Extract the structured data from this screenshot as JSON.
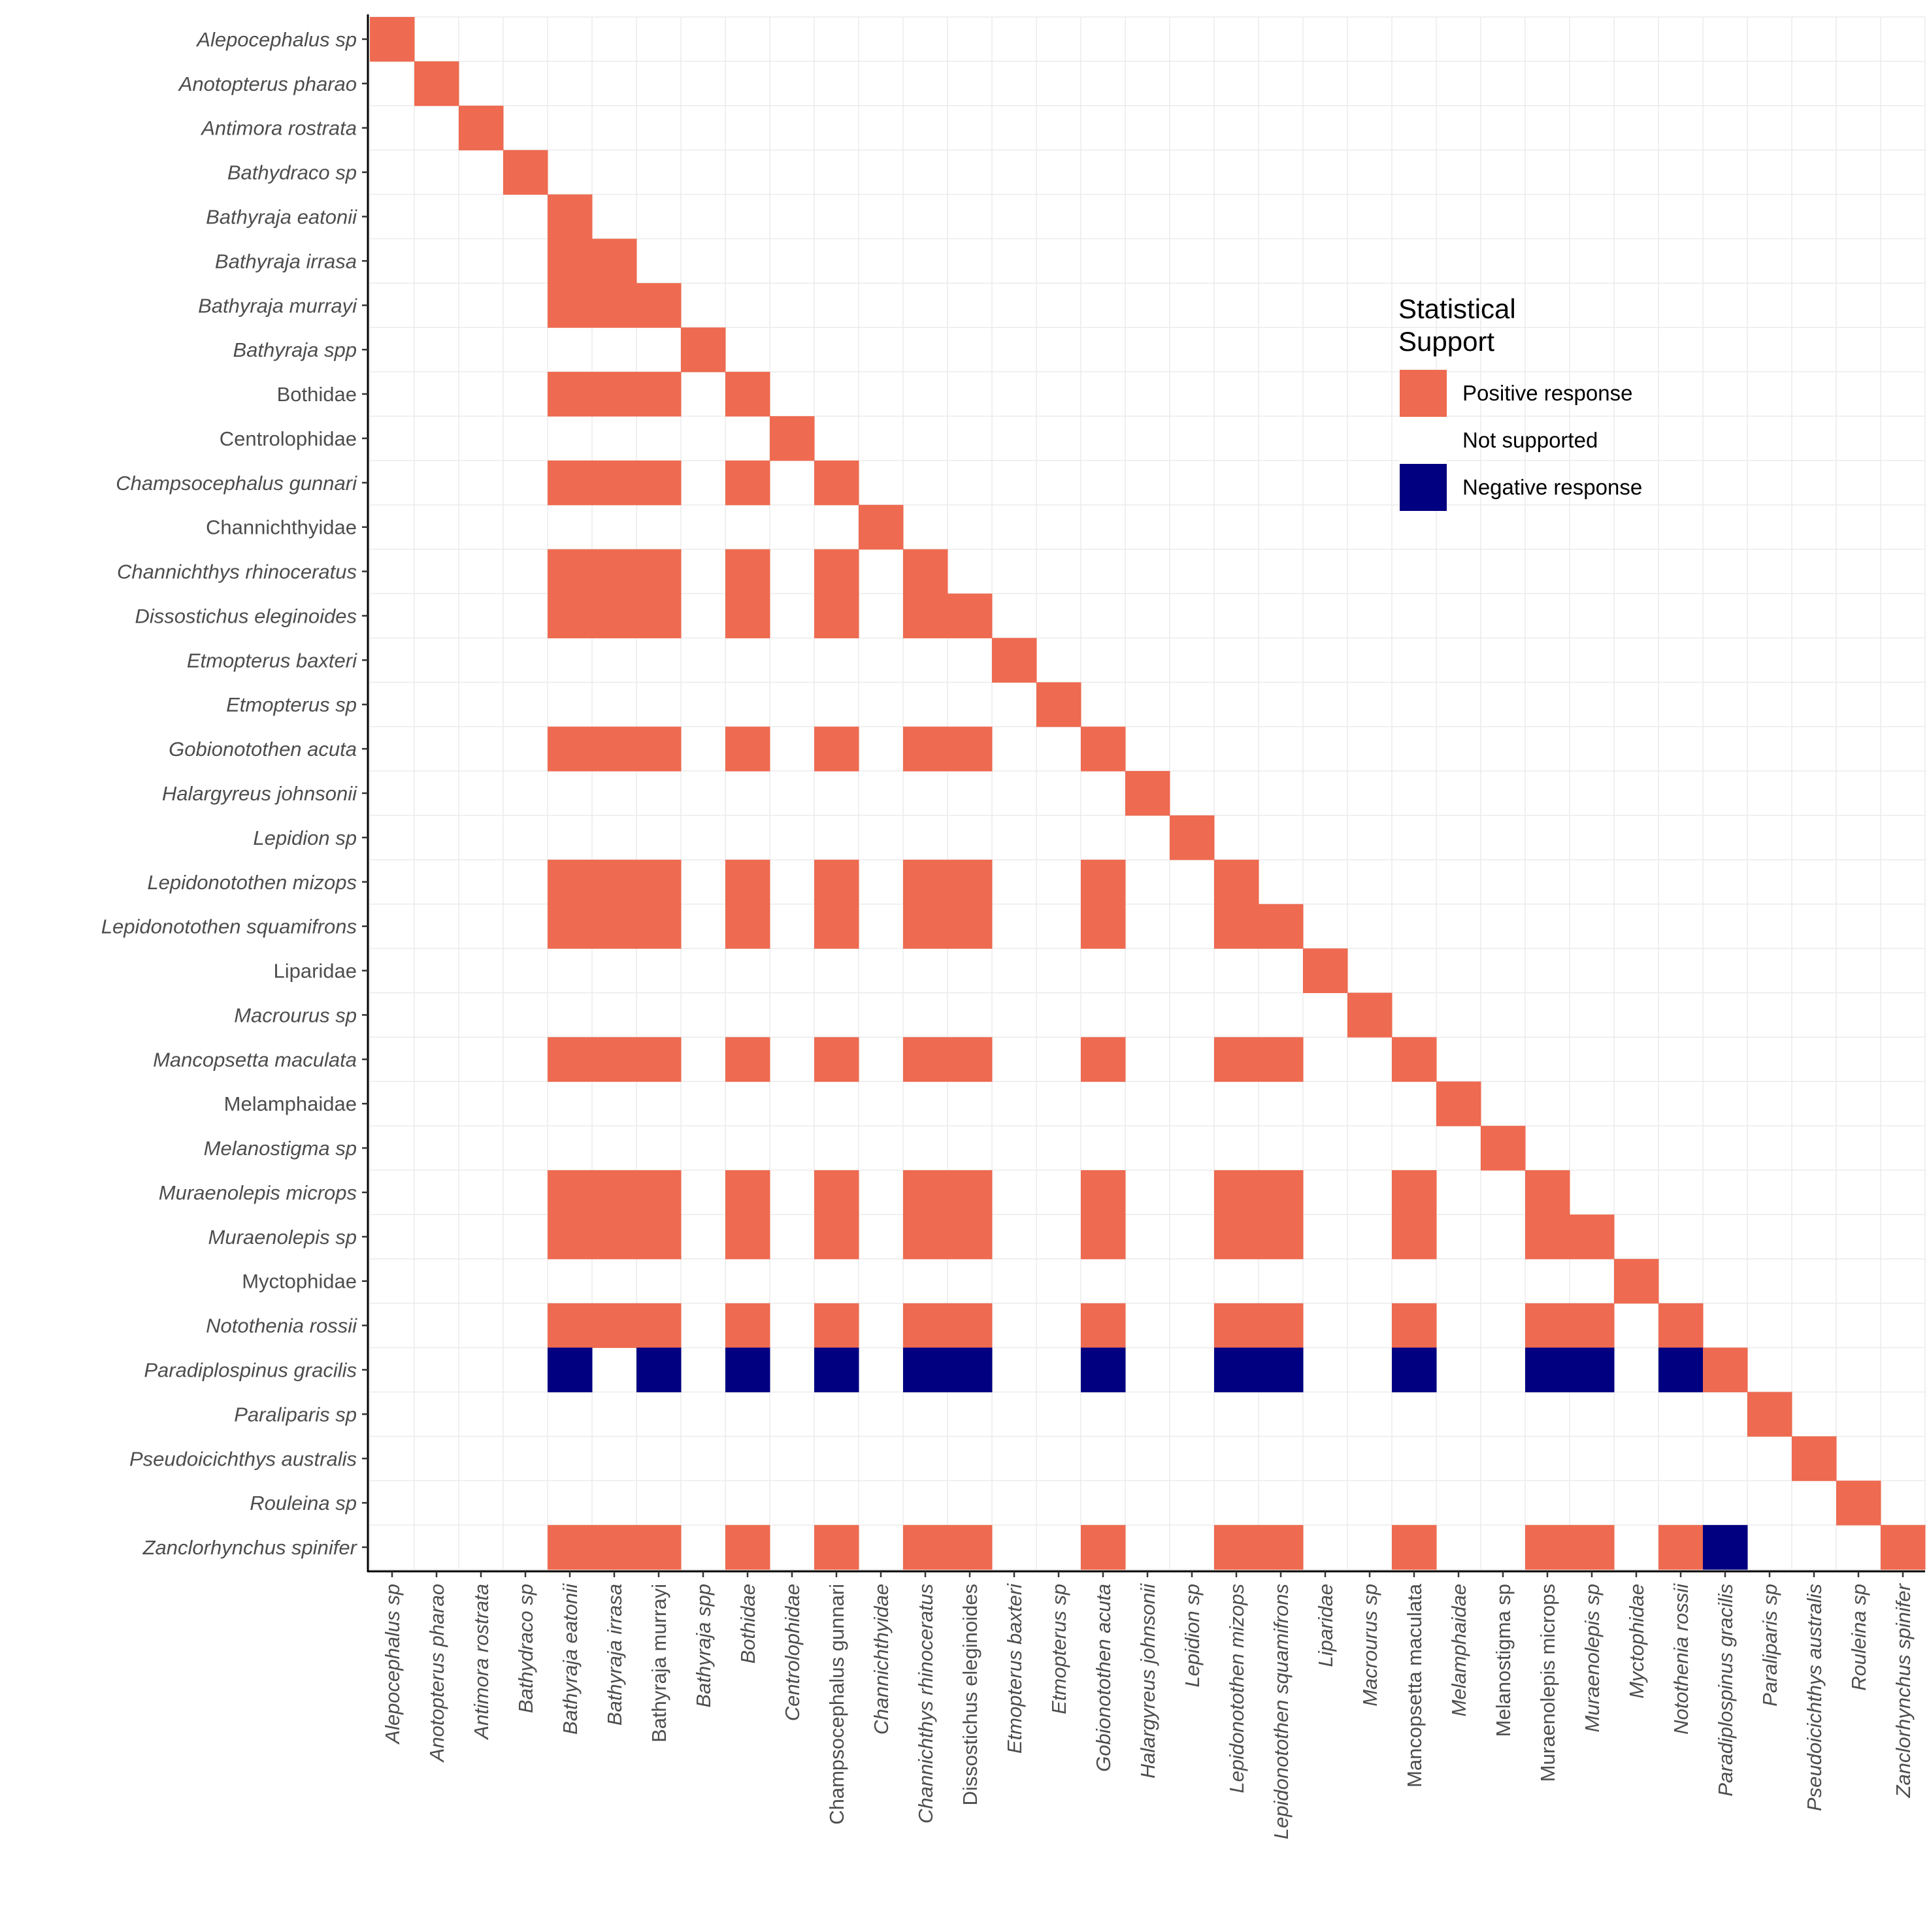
{
  "chart_data": {
    "type": "heatmap",
    "title": "",
    "xlabel": "",
    "ylabel": "",
    "species": [
      {
        "label": "Alepocephalus sp",
        "italic": true
      },
      {
        "label": "Anotopterus pharao",
        "italic": true
      },
      {
        "label": "Antimora rostrata",
        "italic": true
      },
      {
        "label": "Bathydraco sp",
        "italic": true
      },
      {
        "label": "Bathyraja eatonii",
        "italic": true
      },
      {
        "label": "Bathyraja irrasa",
        "italic": true
      },
      {
        "label": "Bathyraja murrayi",
        "italic": true
      },
      {
        "label": "Bathyraja spp",
        "italic": true
      },
      {
        "label": "Bothidae",
        "italic": false
      },
      {
        "label": "Centrolophidae",
        "italic": false
      },
      {
        "label": "Champsocephalus gunnari",
        "italic": true
      },
      {
        "label": "Channichthyidae",
        "italic": false
      },
      {
        "label": "Channichthys rhinoceratus",
        "italic": true
      },
      {
        "label": "Dissostichus eleginoides",
        "italic": true
      },
      {
        "label": "Etmopterus baxteri",
        "italic": true
      },
      {
        "label": "Etmopterus sp",
        "italic": true
      },
      {
        "label": "Gobionotothen acuta",
        "italic": true
      },
      {
        "label": "Halargyreus johnsonii",
        "italic": true
      },
      {
        "label": "Lepidion sp",
        "italic": true
      },
      {
        "label": "Lepidonotothen mizops",
        "italic": true
      },
      {
        "label": "Lepidonotothen squamifrons",
        "italic": true
      },
      {
        "label": "Liparidae",
        "italic": false
      },
      {
        "label": "Macrourus sp",
        "italic": true
      },
      {
        "label": "Mancopsetta maculata",
        "italic": true
      },
      {
        "label": "Melamphaidae",
        "italic": false
      },
      {
        "label": "Melanostigma sp",
        "italic": true
      },
      {
        "label": "Muraenolepis microps",
        "italic": true
      },
      {
        "label": "Muraenolepis sp",
        "italic": true
      },
      {
        "label": "Myctophidae",
        "italic": false
      },
      {
        "label": "Notothenia rossii",
        "italic": true
      },
      {
        "label": "Paradiplospinus gracilis",
        "italic": true
      },
      {
        "label": "Paraliparis sp",
        "italic": true
      },
      {
        "label": "Pseudoicichthys australis",
        "italic": true
      },
      {
        "label": "Rouleina sp",
        "italic": true
      },
      {
        "label": "Zanclorhynchus spinifer",
        "italic": true
      }
    ],
    "x_italic": [
      true,
      true,
      true,
      true,
      true,
      true,
      false,
      true,
      true,
      true,
      false,
      true,
      true,
      false,
      true,
      true,
      true,
      true,
      true,
      true,
      true,
      true,
      true,
      false,
      true,
      false,
      false,
      true,
      true,
      true,
      true,
      true,
      true,
      true,
      true
    ],
    "categories_order": "y top-to-bottom and x left-to-right use the same species list",
    "legend": {
      "title_lines": [
        "Statistical",
        "Support"
      ],
      "items": [
        {
          "label": "Positive response",
          "color": "#EE6A50"
        },
        {
          "label": "Not supported",
          "color": "#FFFFFF"
        },
        {
          "label": "Negative response",
          "color": "#000080"
        }
      ]
    },
    "value_key": {
      "P": "Positive response",
      "N": "Negative response",
      ".": "Not supported"
    },
    "matrix": [
      "P",
      ".P",
      "..P",
      "...P",
      "....P",
      "....PP",
      "....PPP",
      ".......P",
      "....PPP.P",
      ".........P",
      "....PPP.P.P",
      "...........P",
      "....PPP.P.P.P",
      "....PPP.P.P.PP",
      "..............P",
      "...............P",
      "....PPP.P.P.PP..P",
      ".................P",
      "..................P",
      "....PPP.P.P.PP..P..P",
      "....PPP.P.P.PP..P..PP",
      ".....................P",
      "......................P",
      "....PPP.P.P.PP..P..PP..P",
      "........................P",
      ".........................P",
      "....PPP.P.P.PP..P..PP..P..P",
      "....PPP.P.P.PP..P..PP..P..PP",
      "............................P",
      "....PPP.P.P.PP..P..PP..P..PP.P",
      "....N.N.N.N.NN..N..NN..N..NN.NP",
      "...............................P",
      "................................P",
      ".................................P",
      "....PPP.P.P.PP..P..PP..P..PP.PN...P"
    ],
    "grid": true
  }
}
